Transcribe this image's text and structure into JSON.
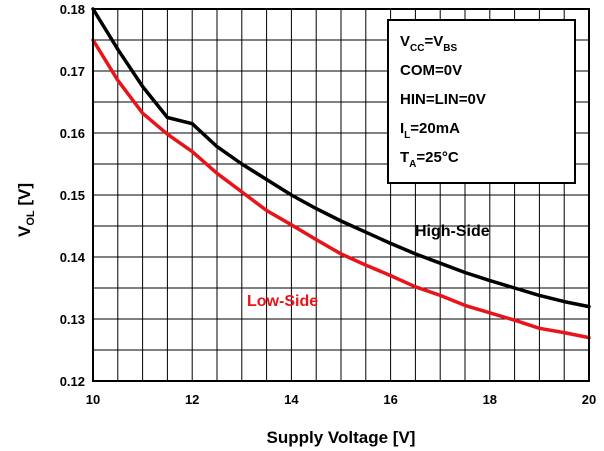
{
  "chart_data": {
    "type": "line",
    "xlabel": "Supply Voltage [V]",
    "ylabel_main": "V",
    "ylabel_sub": "OL",
    "ylabel_unit": " [V]",
    "xlim": [
      10,
      20
    ],
    "ylim": [
      0.12,
      0.18
    ],
    "xticks": [
      "10",
      "12",
      "14",
      "16",
      "18",
      "20"
    ],
    "yticks": [
      "0.12",
      "0.13",
      "0.14",
      "0.15",
      "0.16",
      "0.17",
      "0.18"
    ],
    "grid": true,
    "series": [
      {
        "name": "High-Side",
        "color": "#000000",
        "x": [
          10,
          10.5,
          11,
          11.5,
          12,
          12.5,
          13,
          13.5,
          14,
          14.5,
          15,
          15.5,
          16,
          16.5,
          17,
          17.5,
          18,
          18.5,
          19,
          19.5,
          20
        ],
        "y": [
          0.18,
          0.1735,
          0.1675,
          0.1625,
          0.1615,
          0.1578,
          0.155,
          0.1525,
          0.15,
          0.1478,
          0.1458,
          0.144,
          0.1422,
          0.1405,
          0.139,
          0.1375,
          0.1362,
          0.135,
          0.1338,
          0.1328,
          0.132
        ]
      },
      {
        "name": "Low-Side",
        "color": "#e8141a",
        "x": [
          10,
          10.5,
          11,
          11.5,
          12,
          12.5,
          13,
          13.5,
          14,
          14.5,
          15,
          15.5,
          16,
          16.5,
          17,
          17.5,
          18,
          18.5,
          19,
          19.5,
          20
        ],
        "y": [
          0.175,
          0.1685,
          0.1632,
          0.1598,
          0.157,
          0.1535,
          0.1505,
          0.1475,
          0.1452,
          0.1428,
          0.1405,
          0.1387,
          0.137,
          0.1352,
          0.1338,
          0.1322,
          0.131,
          0.1298,
          0.1285,
          0.1278,
          0.127
        ]
      }
    ],
    "annotation_box": {
      "position": "top-right",
      "lines": [
        {
          "main": "V",
          "sub": "CC",
          "mid": "=V",
          "sub2": "BS",
          "rest": ""
        },
        {
          "main": "COM=0V",
          "sub": "",
          "mid": "",
          "sub2": "",
          "rest": ""
        },
        {
          "main": "HIN=LIN=0V",
          "sub": "",
          "mid": "",
          "sub2": "",
          "rest": ""
        },
        {
          "main": "I",
          "sub": "L",
          "mid": "=20mA",
          "sub2": "",
          "rest": ""
        },
        {
          "main": "T",
          "sub": "A",
          "mid": "=25°C",
          "sub2": "",
          "rest": ""
        }
      ]
    },
    "labels": [
      {
        "text": "High-Side",
        "color": "#000000"
      },
      {
        "text": "Low-Side",
        "color": "#e8141a"
      }
    ]
  }
}
